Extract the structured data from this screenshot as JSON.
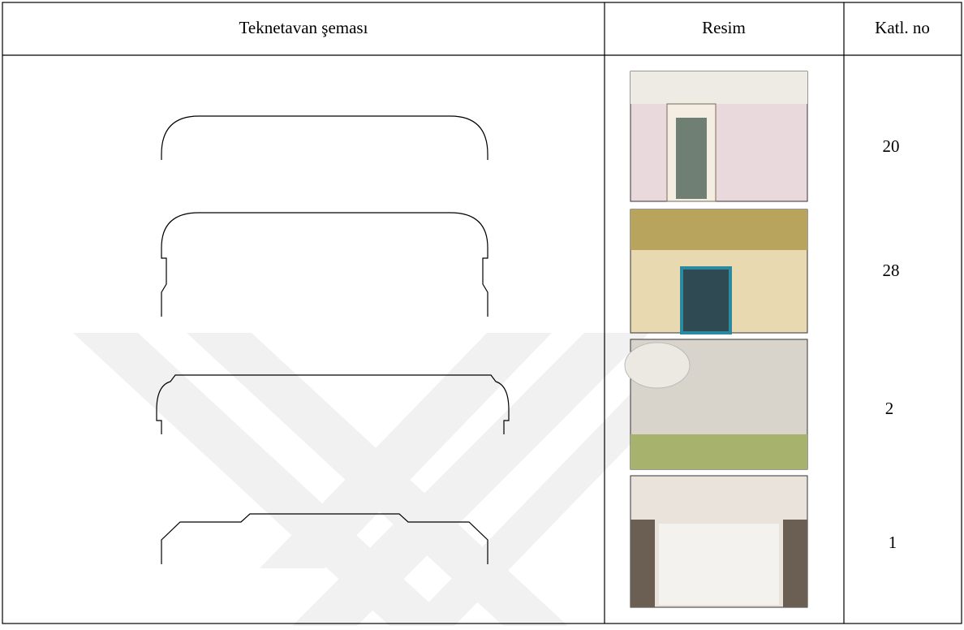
{
  "table": {
    "headers": [
      "Teknetavan şeması",
      "Resim",
      "Katl. no"
    ],
    "rows": [
      [
        20
      ],
      [
        28
      ],
      [
        2
      ],
      [
        1
      ]
    ]
  }
}
